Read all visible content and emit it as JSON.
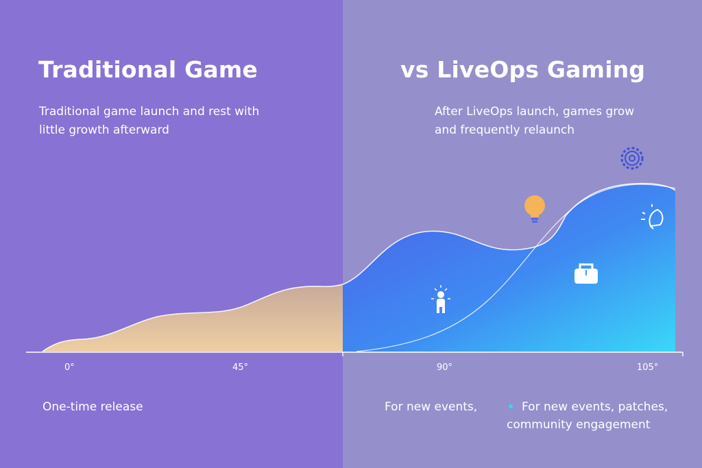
{
  "left_panel": {
    "title": "Traditional Game",
    "subtitle": "Traditional game launch and rest with little growth afterward",
    "caption": "One-time release"
  },
  "right_panel": {
    "title": "vs LiveOps Gaming",
    "subtitle": "After LiveOps launch, games grow and frequently relaunch",
    "caption_short": "For new events,",
    "caption_long": "For new events, patches, community engagement"
  },
  "axis": {
    "ticks": [
      "0°",
      "45°",
      "90°",
      "105°"
    ]
  },
  "icons": [
    "lightbulb-icon",
    "gear-icon",
    "person-icon",
    "shopping-bag-icon",
    "rocket-icon"
  ],
  "colors": {
    "left_bg": "#8872d3",
    "right_bg": "#958fcb",
    "traditional_fill": "#e8c9a0",
    "liveops_fill_top": "#4a6cf0",
    "liveops_fill_bottom": "#3ad2f6"
  }
}
